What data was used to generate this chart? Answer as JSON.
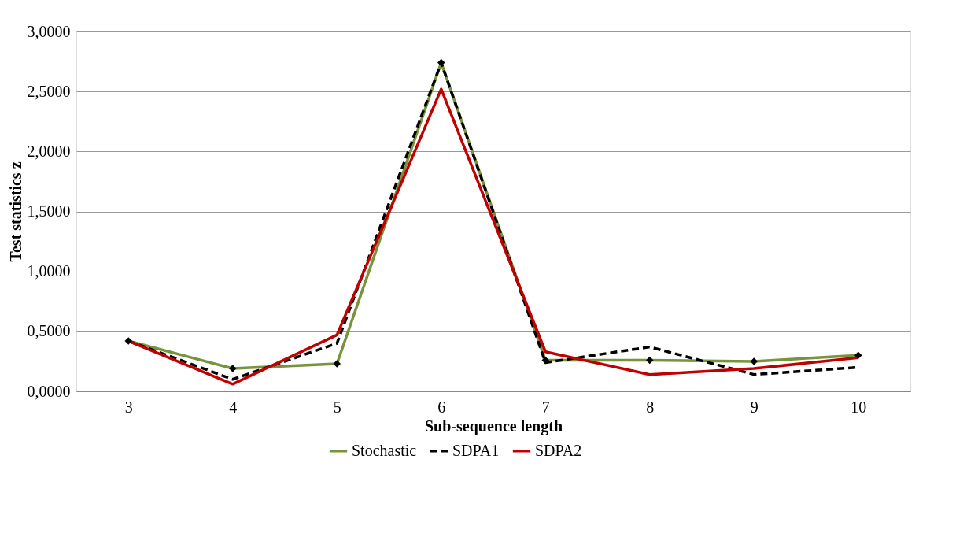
{
  "chart_data": {
    "type": "line",
    "xlabel": "Sub-sequence length",
    "ylabel": "Test statistics z",
    "categories": [
      "3",
      "4",
      "5",
      "6",
      "7",
      "8",
      "9",
      "10"
    ],
    "series": [
      {
        "name": "Stochastic",
        "color": "#77933c",
        "marker": "diamond",
        "line_style": "solid",
        "values": [
          0.42,
          0.19,
          0.23,
          2.74,
          0.26,
          0.26,
          0.25,
          0.3
        ]
      },
      {
        "name": "SDPA1",
        "color": "#000000",
        "marker": "none",
        "line_style": "dashed",
        "values": [
          0.42,
          0.1,
          0.4,
          2.74,
          0.24,
          0.37,
          0.14,
          0.2
        ]
      },
      {
        "name": "SDPA2",
        "color": "#c00000",
        "marker": "none",
        "line_style": "solid",
        "values": [
          0.42,
          0.06,
          0.47,
          2.52,
          0.33,
          0.14,
          0.19,
          0.28
        ]
      }
    ],
    "ylim": [
      0,
      3
    ],
    "yticks": [
      {
        "value": 0,
        "label": "0,0000"
      },
      {
        "value": 0.5,
        "label": "0,5000"
      },
      {
        "value": 1,
        "label": "1,0000"
      },
      {
        "value": 1.5,
        "label": "1,5000"
      },
      {
        "value": 2,
        "label": "2,0000"
      },
      {
        "value": 2.5,
        "label": "2,5000"
      },
      {
        "value": 3,
        "label": "3,0000"
      }
    ],
    "grid": "y",
    "legend": "bottom"
  }
}
